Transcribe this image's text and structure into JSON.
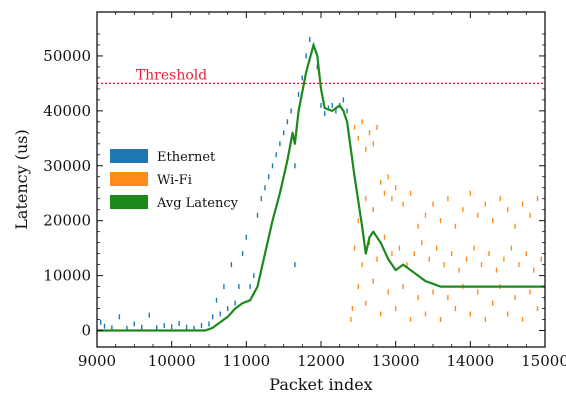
{
  "chart_data": {
    "type": "scatter",
    "xlabel": "Packet index",
    "ylabel": "Latency (us)",
    "xlim": [
      9000,
      15000
    ],
    "ylim": [
      -3000,
      58000
    ],
    "xticks": [
      "9000",
      "10000",
      "11000",
      "12000",
      "13000",
      "14000",
      "15000"
    ],
    "yticks": [
      "0",
      "10000",
      "20000",
      "30000",
      "40000",
      "50000"
    ],
    "grid": false,
    "legend_position": "center-left",
    "threshold": {
      "label": "Threshold",
      "value": 45000,
      "color": "#e8213a"
    },
    "series": [
      {
        "name": "Ethernet",
        "kind": "scatter",
        "color": "#1f77b4",
        "points": [
          [
            9000,
            0
          ],
          [
            9050,
            1500
          ],
          [
            9100,
            800
          ],
          [
            9200,
            500
          ],
          [
            9300,
            2500
          ],
          [
            9400,
            400
          ],
          [
            9500,
            1200
          ],
          [
            9600,
            600
          ],
          [
            9700,
            2800
          ],
          [
            9800,
            500
          ],
          [
            9900,
            900
          ],
          [
            10000,
            700
          ],
          [
            10100,
            1300
          ],
          [
            10200,
            600
          ],
          [
            10300,
            400
          ],
          [
            10400,
            900
          ],
          [
            10500,
            1200
          ],
          [
            10550,
            2500
          ],
          [
            10600,
            5500
          ],
          [
            10650,
            3000
          ],
          [
            10700,
            8000
          ],
          [
            10750,
            4000
          ],
          [
            10800,
            12000
          ],
          [
            10850,
            5000
          ],
          [
            10900,
            8000
          ],
          [
            10950,
            14000
          ],
          [
            11000,
            17000
          ],
          [
            11050,
            8000
          ],
          [
            11100,
            10000
          ],
          [
            11150,
            21000
          ],
          [
            11200,
            24000
          ],
          [
            11250,
            26000
          ],
          [
            11300,
            28000
          ],
          [
            11350,
            30000
          ],
          [
            11400,
            32000
          ],
          [
            11450,
            34000
          ],
          [
            11500,
            36000
          ],
          [
            11550,
            38000
          ],
          [
            11600,
            40000
          ],
          [
            11650,
            12000
          ],
          [
            11650,
            30000
          ],
          [
            11700,
            43000
          ],
          [
            11750,
            46000
          ],
          [
            11800,
            50000
          ],
          [
            11850,
            53000
          ],
          [
            11900,
            52000
          ],
          [
            11950,
            48000
          ],
          [
            12000,
            41000
          ],
          [
            12050,
            39500
          ],
          [
            12100,
            40500
          ],
          [
            12150,
            41000
          ],
          [
            12200,
            40000
          ],
          [
            12250,
            41000
          ],
          [
            12300,
            42000
          ],
          [
            12350,
            40000
          ]
        ]
      },
      {
        "name": "Wi-Fi",
        "kind": "scatter",
        "color": "#ff8c1a",
        "points": [
          [
            12400,
            2000
          ],
          [
            12420,
            4000
          ],
          [
            12450,
            37000
          ],
          [
            12500,
            35000
          ],
          [
            12550,
            38000
          ],
          [
            12600,
            33000
          ],
          [
            12650,
            36000
          ],
          [
            12700,
            34000
          ],
          [
            12750,
            37000
          ],
          [
            12500,
            20000
          ],
          [
            12600,
            24000
          ],
          [
            12700,
            22000
          ],
          [
            12800,
            27000
          ],
          [
            12850,
            25000
          ],
          [
            12900,
            28000
          ],
          [
            12950,
            24000
          ],
          [
            13000,
            26000
          ],
          [
            13100,
            23000
          ],
          [
            13200,
            25000
          ],
          [
            13300,
            19000
          ],
          [
            13400,
            21000
          ],
          [
            13500,
            23000
          ],
          [
            13600,
            20000
          ],
          [
            13700,
            24000
          ],
          [
            13800,
            19000
          ],
          [
            13900,
            22000
          ],
          [
            14000,
            25000
          ],
          [
            14100,
            21000
          ],
          [
            14200,
            23000
          ],
          [
            14300,
            20000
          ],
          [
            14400,
            24000
          ],
          [
            14500,
            22000
          ],
          [
            14600,
            19000
          ],
          [
            14700,
            23000
          ],
          [
            14800,
            21000
          ],
          [
            14900,
            24000
          ],
          [
            15000,
            20000
          ],
          [
            12500,
            8000
          ],
          [
            12600,
            5000
          ],
          [
            12700,
            9000
          ],
          [
            12800,
            3000
          ],
          [
            12900,
            7000
          ],
          [
            13000,
            4000
          ],
          [
            13100,
            8000
          ],
          [
            13200,
            2000
          ],
          [
            13300,
            6000
          ],
          [
            13400,
            3000
          ],
          [
            13500,
            7000
          ],
          [
            13600,
            2000
          ],
          [
            13700,
            6000
          ],
          [
            13800,
            4000
          ],
          [
            13900,
            8000
          ],
          [
            14000,
            3000
          ],
          [
            14100,
            7000
          ],
          [
            14200,
            2000
          ],
          [
            14300,
            5000
          ],
          [
            14400,
            8000
          ],
          [
            14500,
            3000
          ],
          [
            14600,
            6000
          ],
          [
            14700,
            2000
          ],
          [
            14800,
            7000
          ],
          [
            14900,
            4000
          ],
          [
            15000,
            6000
          ],
          [
            12450,
            15000
          ],
          [
            12550,
            12000
          ],
          [
            12650,
            16000
          ],
          [
            12750,
            13000
          ],
          [
            12850,
            17000
          ],
          [
            12950,
            14000
          ],
          [
            13050,
            15000
          ],
          [
            13150,
            12000
          ],
          [
            13250,
            14000
          ],
          [
            13350,
            16000
          ],
          [
            13450,
            13000
          ],
          [
            13550,
            15000
          ],
          [
            13650,
            12000
          ],
          [
            13750,
            14000
          ],
          [
            13850,
            11000
          ],
          [
            13950,
            13000
          ],
          [
            14050,
            15000
          ],
          [
            14150,
            12000
          ],
          [
            14250,
            14000
          ],
          [
            14350,
            11000
          ],
          [
            14450,
            13000
          ],
          [
            14550,
            15000
          ],
          [
            14650,
            12000
          ],
          [
            14750,
            14000
          ],
          [
            14850,
            11000
          ],
          [
            14950,
            13000
          ]
        ]
      },
      {
        "name": "Avg Latency",
        "kind": "line",
        "color": "#1b8a1b",
        "points": [
          [
            9000,
            0
          ],
          [
            10000,
            0
          ],
          [
            10450,
            0
          ],
          [
            10550,
            500
          ],
          [
            10650,
            1500
          ],
          [
            10750,
            2500
          ],
          [
            10850,
            4000
          ],
          [
            10950,
            5000
          ],
          [
            11050,
            5500
          ],
          [
            11150,
            8000
          ],
          [
            11250,
            14000
          ],
          [
            11350,
            20000
          ],
          [
            11450,
            25000
          ],
          [
            11550,
            31000
          ],
          [
            11620,
            36000
          ],
          [
            11650,
            34000
          ],
          [
            11700,
            40000
          ],
          [
            11800,
            47000
          ],
          [
            11900,
            52000
          ],
          [
            11950,
            50000
          ],
          [
            12000,
            44000
          ],
          [
            12050,
            40500
          ],
          [
            12150,
            40000
          ],
          [
            12250,
            41000
          ],
          [
            12300,
            40000
          ],
          [
            12350,
            38000
          ],
          [
            12450,
            28000
          ],
          [
            12550,
            19000
          ],
          [
            12600,
            14000
          ],
          [
            12650,
            17000
          ],
          [
            12700,
            18000
          ],
          [
            12800,
            16000
          ],
          [
            12900,
            13000
          ],
          [
            13000,
            11000
          ],
          [
            13100,
            12000
          ],
          [
            13200,
            11000
          ],
          [
            13300,
            10000
          ],
          [
            13400,
            9000
          ],
          [
            13500,
            8500
          ],
          [
            13600,
            8000
          ],
          [
            13800,
            8000
          ],
          [
            14000,
            8000
          ],
          [
            14500,
            8000
          ],
          [
            15000,
            8000
          ]
        ]
      }
    ]
  }
}
